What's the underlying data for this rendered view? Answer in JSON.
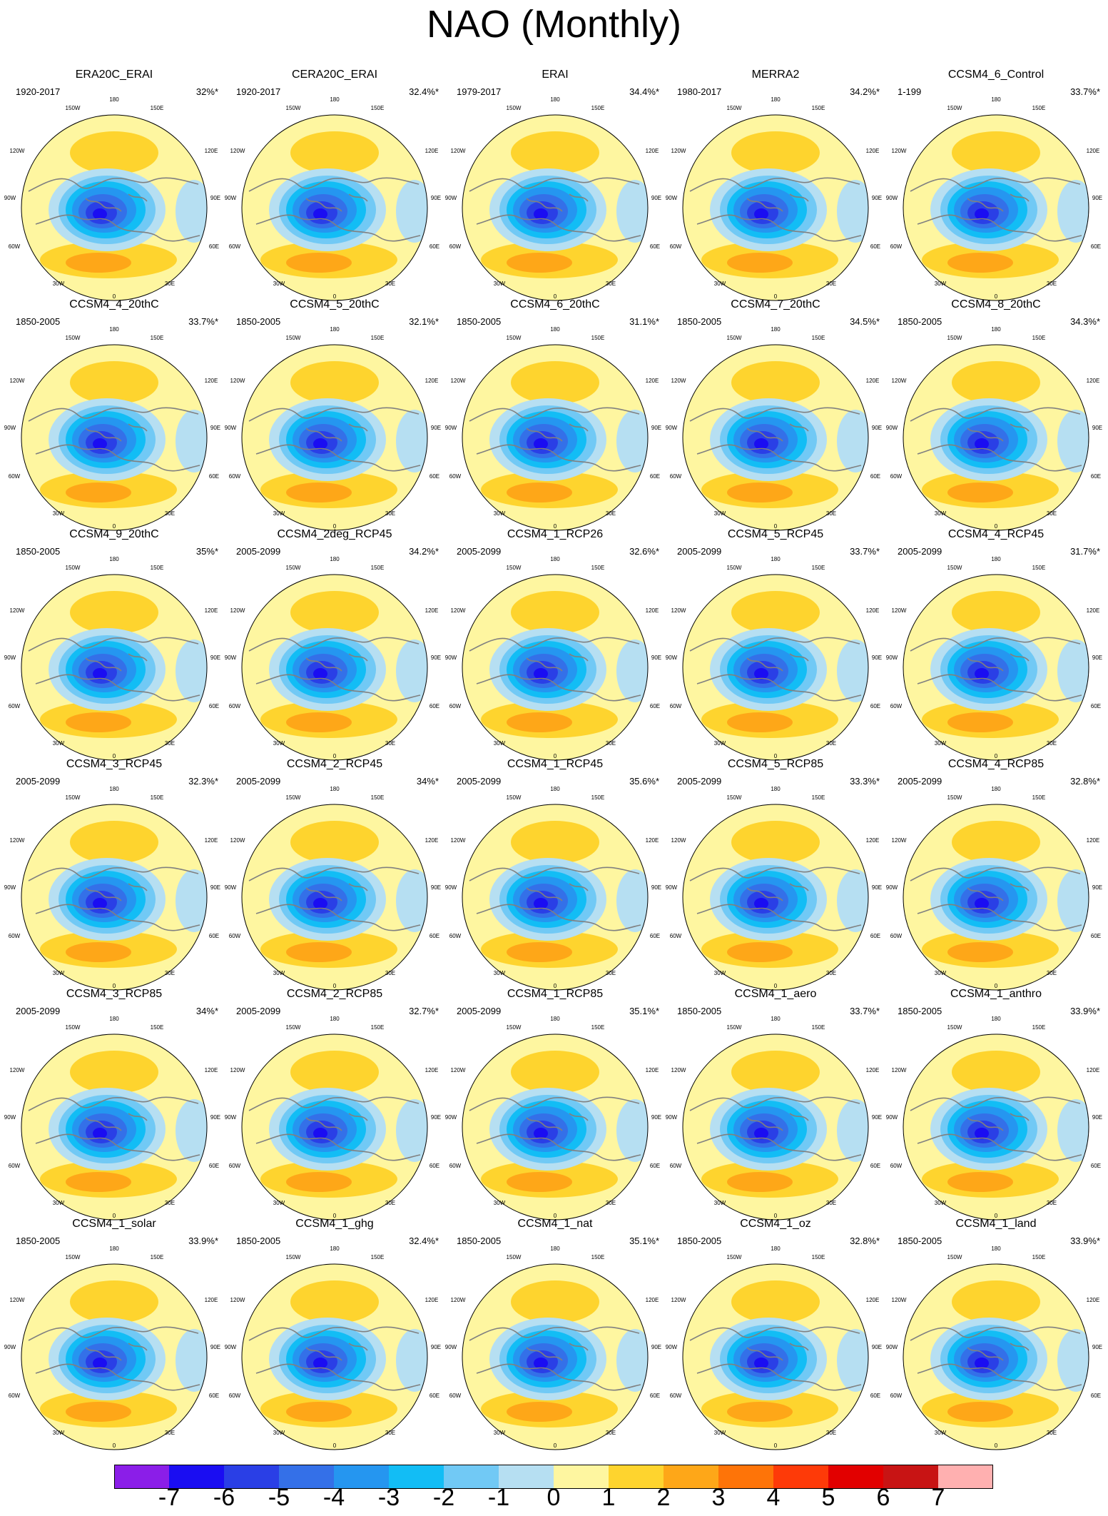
{
  "title": "NAO (Monthly)",
  "map_labels": {
    "top": "180",
    "top_left": "150W",
    "top_right": "150E",
    "upper_left": "120W",
    "upper_right": "120E",
    "left": "90W",
    "right": "90E",
    "lower_left": "60W",
    "lower_right": "60E",
    "bottom_left": "30W",
    "bottom_right": "30E",
    "bottom": "0"
  },
  "colors": {
    "levels": [
      "#8b1ee8",
      "#1a0df2",
      "#2a3fe6",
      "#3470e8",
      "#2596f0",
      "#12bdf5",
      "#71c9f5",
      "#b6dff2",
      "#fef6a0",
      "#fed42e",
      "#fea718",
      "#fe7408",
      "#fe3a08",
      "#e20000",
      "#c81414",
      "#ffb0b0"
    ],
    "coast": "#808080"
  },
  "colorbar": {
    "labels": [
      "-7",
      "-6",
      "-5",
      "-4",
      "-3",
      "-2",
      "-1",
      "0",
      "1",
      "2",
      "3",
      "4",
      "5",
      "6",
      "7"
    ]
  },
  "panels": [
    {
      "title": "ERA20C_ERAI",
      "period": "1920-2017",
      "pct": "32%*"
    },
    {
      "title": "CERA20C_ERAI",
      "period": "1920-2017",
      "pct": "32.4%*"
    },
    {
      "title": "ERAI",
      "period": "1979-2017",
      "pct": "34.4%*"
    },
    {
      "title": "MERRA2",
      "period": "1980-2017",
      "pct": "34.2%*"
    },
    {
      "title": "CCSM4_6_Control",
      "period": "1-199",
      "pct": "33.7%*"
    },
    {
      "title": "CCSM4_4_20thC",
      "period": "1850-2005",
      "pct": "33.7%*"
    },
    {
      "title": "CCSM4_5_20thC",
      "period": "1850-2005",
      "pct": "32.1%*"
    },
    {
      "title": "CCSM4_6_20thC",
      "period": "1850-2005",
      "pct": "31.1%*"
    },
    {
      "title": "CCSM4_7_20thC",
      "period": "1850-2005",
      "pct": "34.5%*"
    },
    {
      "title": "CCSM4_8_20thC",
      "period": "1850-2005",
      "pct": "34.3%*"
    },
    {
      "title": "CCSM4_9_20thC",
      "period": "1850-2005",
      "pct": "35%*"
    },
    {
      "title": "CCSM4_2deg_RCP45",
      "period": "2005-2099",
      "pct": "34.2%*"
    },
    {
      "title": "CCSM4_1_RCP26",
      "period": "2005-2099",
      "pct": "32.6%*"
    },
    {
      "title": "CCSM4_5_RCP45",
      "period": "2005-2099",
      "pct": "33.7%*"
    },
    {
      "title": "CCSM4_4_RCP45",
      "period": "2005-2099",
      "pct": "31.7%*"
    },
    {
      "title": "CCSM4_3_RCP45",
      "period": "2005-2099",
      "pct": "32.3%*"
    },
    {
      "title": "CCSM4_2_RCP45",
      "period": "2005-2099",
      "pct": "34%*"
    },
    {
      "title": "CCSM4_1_RCP45",
      "period": "2005-2099",
      "pct": "35.6%*"
    },
    {
      "title": "CCSM4_5_RCP85",
      "period": "2005-2099",
      "pct": "33.3%*"
    },
    {
      "title": "CCSM4_4_RCP85",
      "period": "2005-2099",
      "pct": "32.8%*"
    },
    {
      "title": "CCSM4_3_RCP85",
      "period": "2005-2099",
      "pct": "34%*"
    },
    {
      "title": "CCSM4_2_RCP85",
      "period": "2005-2099",
      "pct": "32.7%*"
    },
    {
      "title": "CCSM4_1_RCP85",
      "period": "2005-2099",
      "pct": "35.1%*"
    },
    {
      "title": "CCSM4_1_aero",
      "period": "1850-2005",
      "pct": "33.7%*"
    },
    {
      "title": "CCSM4_1_anthro",
      "period": "1850-2005",
      "pct": "33.9%*"
    },
    {
      "title": "CCSM4_1_solar",
      "period": "1850-2005",
      "pct": "33.9%*"
    },
    {
      "title": "CCSM4_1_ghg",
      "period": "1850-2005",
      "pct": "32.4%*"
    },
    {
      "title": "CCSM4_1_nat",
      "period": "1850-2005",
      "pct": "35.1%*"
    },
    {
      "title": "CCSM4_1_oz",
      "period": "1850-2005",
      "pct": "32.8%*"
    },
    {
      "title": "CCSM4_1_land",
      "period": "1850-2005",
      "pct": "33.9%*"
    }
  ]
}
